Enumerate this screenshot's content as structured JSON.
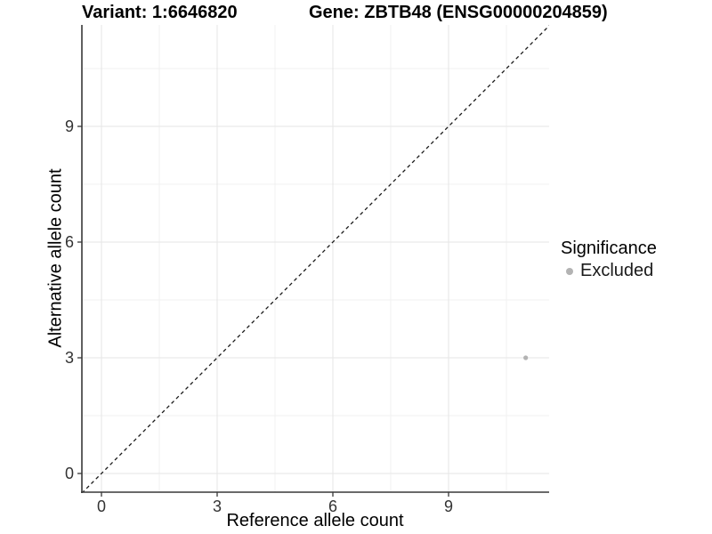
{
  "header": {
    "variant_title": "Variant: 1:6646820",
    "gene_title": "Gene: ZBTB48 (ENSG00000204859)"
  },
  "chart_data": {
    "type": "scatter",
    "title_left": "Variant: 1:6646820",
    "title_right": "Gene: ZBTB48 (ENSG00000204859)",
    "xlabel": "Reference allele count",
    "ylabel": "Alternative allele count",
    "xlim": [
      -0.5,
      11.6
    ],
    "ylim": [
      -0.5,
      11.6
    ],
    "xticks": [
      0,
      3,
      6,
      9
    ],
    "yticks": [
      0,
      3,
      6,
      9
    ],
    "minor_ticks": [
      1.5,
      4.5,
      7.5,
      10.5
    ],
    "grid": "on",
    "series": [
      {
        "name": "Excluded",
        "color": "#b3b3b3",
        "points": [
          {
            "x": 11,
            "y": 3
          }
        ]
      }
    ],
    "reference_line": {
      "type": "identity",
      "slope": 1,
      "intercept": 0,
      "style": "dashed",
      "color": "#1a1a1a"
    },
    "legend": {
      "title": "Significance",
      "position": "right",
      "items": [
        {
          "label": "Excluded",
          "color": "#b3b3b3"
        }
      ]
    }
  },
  "colors": {
    "background": "#ffffff",
    "grid_major": "#e6e6e6",
    "grid_minor": "#f0f0f0",
    "axis_line": "#383838",
    "tick_label": "#333333",
    "point": "#b3b3b3"
  }
}
